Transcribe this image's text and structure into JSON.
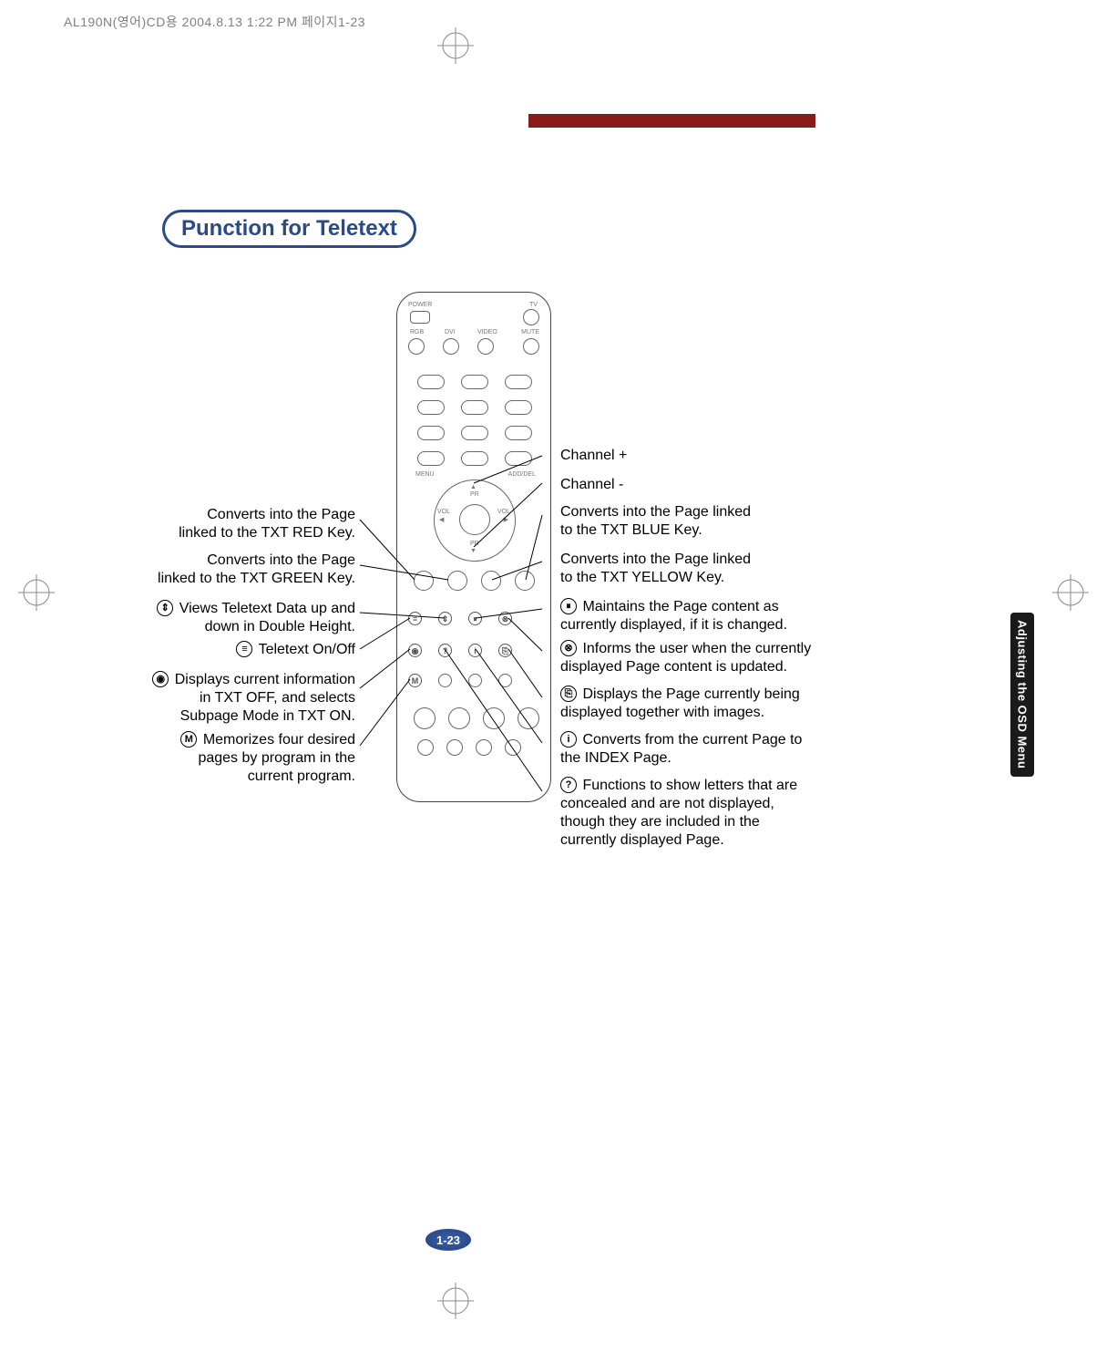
{
  "header_text": "AL190N(영어)CD용  2004.8.13 1:22 PM  페이지1-23",
  "title": "Punction for Teletext",
  "side_tab": "Adjusting the OSD Menu",
  "page_number": "1-23",
  "remote_labels": {
    "power": "POWER",
    "tv": "TV",
    "rgb": "RGB",
    "dvi": "DVI",
    "video": "VIDEO",
    "mute": "MUTE",
    "menu": "MENU",
    "add_del": "ADD/DEL",
    "pr_up": "PR",
    "pr_down": "PR",
    "vol_l": "VOL",
    "vol_r": "VOL"
  },
  "left_labels": {
    "red": "Converts into the Page\nlinked to the TXT RED Key.",
    "green": "Converts into the Page\nlinked to the TXT GREEN Key.",
    "double_height": "Views Teletext Data up and\ndown in Double Height.",
    "onoff": "Teletext On/Off",
    "subpage": "Displays current information\nin TXT OFF, and selects\nSubpage Mode in TXT ON.",
    "memorize": "Memorizes four desired\npages by program in the\ncurrent program."
  },
  "right_labels": {
    "ch_plus": "Channel +",
    "ch_minus": "Channel -",
    "blue": "Converts into the Page linked\nto the TXT BLUE Key.",
    "yellow": "Converts into the Page linked\nto the TXT YELLOW Key.",
    "hold": "Maintains the Page content as\ncurrently displayed, if it is changed.",
    "update": "Informs the user when the currently\ndisplayed Page content is updated.",
    "mix": "Displays the Page currently being\ndisplayed together with images.",
    "index": "Converts from the current Page to\nthe INDEX Page.",
    "reveal": "Functions to show letters that are\nconcealed and are not displayed,\nthough they are included in the\ncurrently displayed Page."
  },
  "icon_glyphs": {
    "double_height": "⇕",
    "onoff": "≡",
    "subpage": "◉",
    "memorize": "M",
    "hold": "⏸",
    "update": "⊗",
    "mix": "⎘",
    "index": "i",
    "reveal": "?"
  },
  "colors": {
    "red_bar": "#8b1a1a",
    "title_border": "#2b4a8a",
    "side_tab_bg": "#1a1a1a",
    "page_num_bg": "#2b4a8a"
  }
}
